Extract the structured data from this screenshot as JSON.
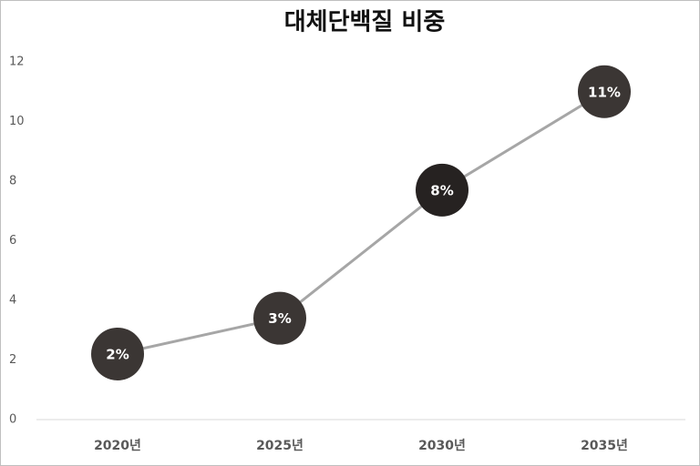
{
  "chart_data": {
    "type": "line",
    "title": "대체단백질 비중",
    "categories": [
      "2020년",
      "2025년",
      "2030년",
      "2035년"
    ],
    "series": [
      {
        "color": "#a6a6a6",
        "values": [
          2.2,
          3.4,
          7.7,
          11
        ],
        "value_labels": [
          "2%",
          "3%",
          "8%",
          "11%"
        ],
        "marker_colors": [
          "#3b3634",
          "#3b3634",
          "#262221",
          "#3b3634"
        ]
      }
    ],
    "ylim": [
      0,
      12
    ],
    "yticks": [
      0,
      2,
      4,
      6,
      8,
      10,
      12
    ],
    "grid": false
  }
}
